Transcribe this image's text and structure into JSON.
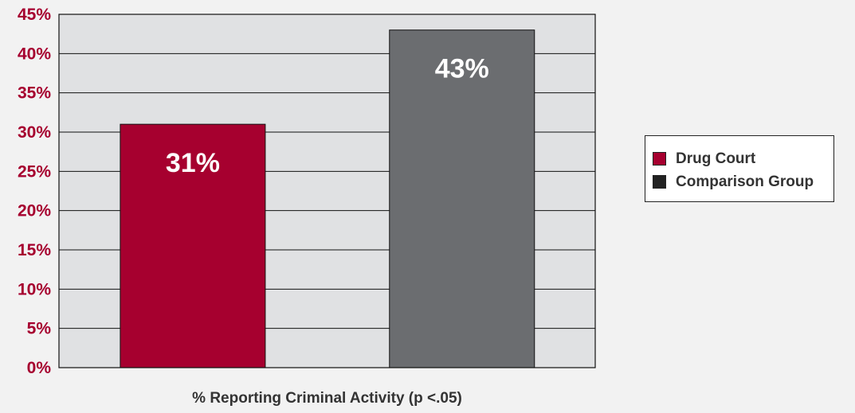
{
  "chart_data": {
    "type": "bar",
    "categories": [
      "Drug Court",
      "Comparison Group"
    ],
    "values": [
      31,
      43
    ],
    "data_labels": [
      "31%",
      "43%"
    ],
    "colors": [
      "#a6002f",
      "#6b6d70"
    ],
    "xlabel": "% Reporting Criminal Activity (p <.05)",
    "ylabel": "",
    "ylim": [
      0,
      45
    ],
    "yticks": [
      0,
      5,
      10,
      15,
      20,
      25,
      30,
      35,
      40,
      45
    ],
    "ytick_labels": [
      "0%",
      "5%",
      "10%",
      "15%",
      "20%",
      "25%",
      "30%",
      "35%",
      "40%",
      "45%"
    ],
    "tick_color": "#a6002f",
    "plot_background": "#e0e1e3",
    "grid": true,
    "legend": {
      "position": "right",
      "entries": [
        {
          "label": "Drug Court",
          "color": "#a6002f"
        },
        {
          "label": "Comparison Group",
          "color": "#222222"
        }
      ]
    }
  }
}
